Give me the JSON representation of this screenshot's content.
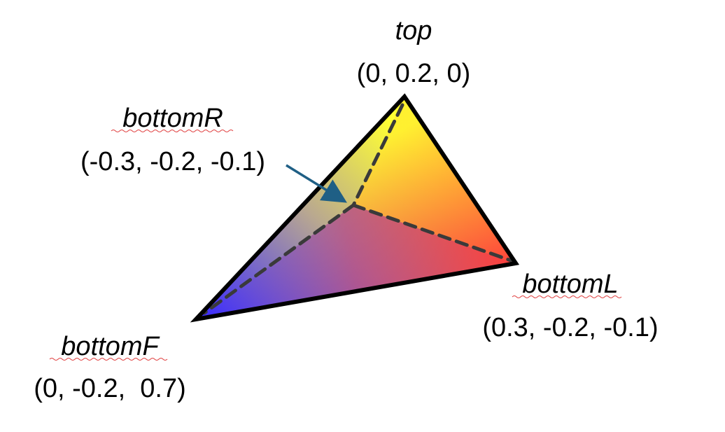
{
  "vertices": {
    "top": {
      "name": "top",
      "coords": "(0, 0.2, 0)",
      "color": "#ffff33"
    },
    "bottomR": {
      "name": "bottomR",
      "coords": "(-0.3, -0.2, -0.1)",
      "color": "#9a8a8a"
    },
    "bottomL": {
      "name": "bottomL",
      "coords": "(0.3, -0.2, -0.1)",
      "color": "#ff2a33"
    },
    "bottomF": {
      "name": "bottomF",
      "coords": "(0, -0.2,  0.7)",
      "color": "#2a2aff"
    }
  },
  "colors": {
    "edge": "#000000",
    "hidden_edge": "#3a3a3a",
    "arrow": "#1f5f85"
  }
}
